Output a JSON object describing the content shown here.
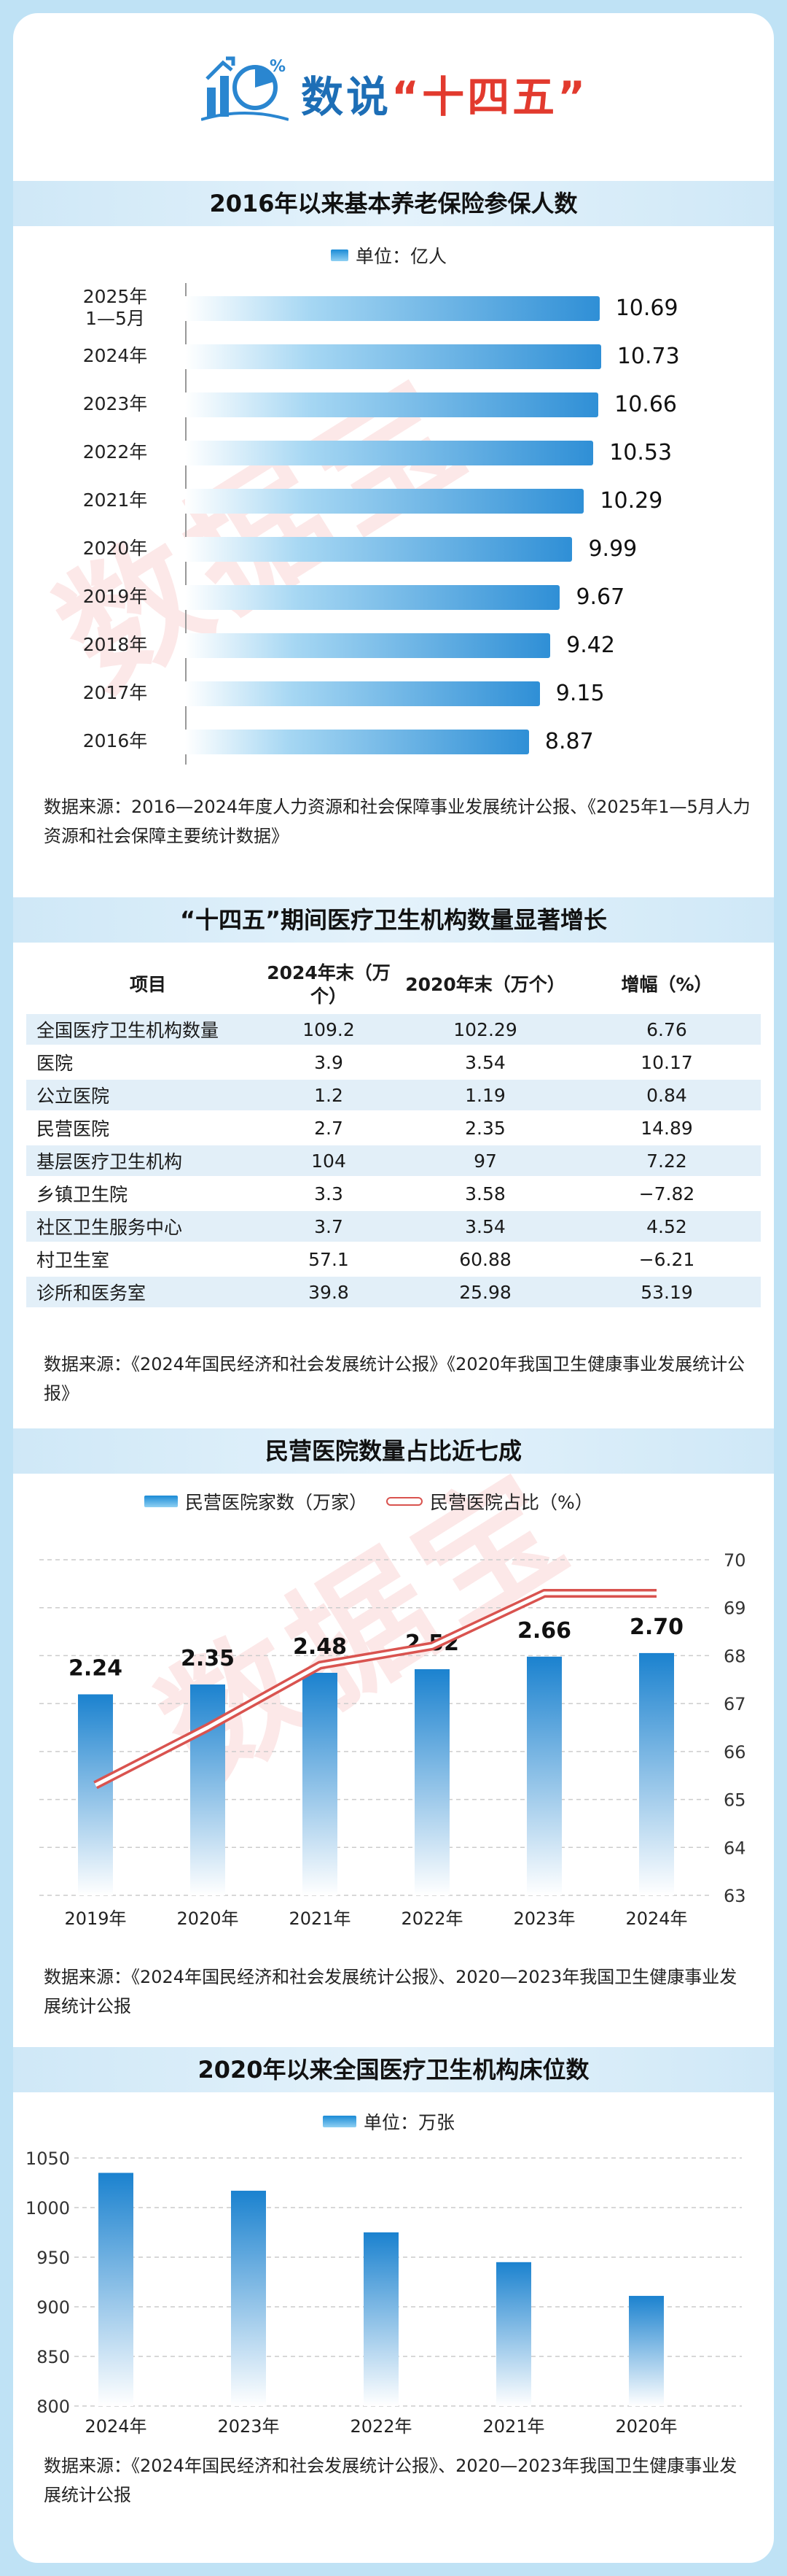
{
  "header": {
    "title_prefix": "数说",
    "title_main": "“十四五”"
  },
  "pension": {
    "title": "2016年以来基本养老保险参保人数",
    "unit": "单位：亿人",
    "source": "数据来源：2016—2024年度人力资源和社会保障事业发展统计公报、《2025年1—5月人力资源和社会保障主要统计数据》"
  },
  "institutions": {
    "title": "“十四五”期间医疗卫生机构数量显著增长",
    "headers": [
      "项目",
      "2024年末（万个）",
      "2020年末（万个）",
      "增幅（%）"
    ],
    "rows": [
      [
        "全国医疗卫生机构数量",
        "109.2",
        "102.29",
        "6.76"
      ],
      [
        "医院",
        "3.9",
        "3.54",
        "10.17"
      ],
      [
        "公立医院",
        "1.2",
        "1.19",
        "0.84"
      ],
      [
        "民营医院",
        "2.7",
        "2.35",
        "14.89"
      ],
      [
        "基层医疗卫生机构",
        "104",
        "97",
        "7.22"
      ],
      [
        "乡镇卫生院",
        "3.3",
        "3.58",
        "−7.82"
      ],
      [
        "社区卫生服务中心",
        "3.7",
        "3.54",
        "4.52"
      ],
      [
        "村卫生室",
        "57.1",
        "60.88",
        "−6.21"
      ],
      [
        "诊所和医务室",
        "39.8",
        "25.98",
        "53.19"
      ]
    ],
    "source": "数据来源：《2024年国民经济和社会发展统计公报》《2020年我国卫生健康事业发展统计公报》"
  },
  "private_hospitals": {
    "title": "民营医院数量占比近七成",
    "source": "数据来源：《2024年国民经济和社会发展统计公报》、2020—2023年我国卫生健康事业发展统计公报"
  },
  "beds": {
    "title": "2020年以来全国医疗卫生机构床位数",
    "unit": "单位：万张",
    "source": "数据来源：《2024年国民经济和社会发展统计公报》、2020—2023年我国卫生健康事业发展统计公报"
  },
  "watermark": "数据宝",
  "colors": {
    "accent": "#1d6eb6",
    "red": "#e23a2e",
    "bar": "#2f8fd6",
    "line": "#d9534f"
  },
  "chart_data": [
    {
      "type": "bar",
      "title": "2016年以来基本养老保险参保人数",
      "categories": [
        "2025年 1—5月",
        "2024年",
        "2023年",
        "2022年",
        "2021年",
        "2020年",
        "2019年",
        "2018年",
        "2017年",
        "2016年"
      ],
      "values": [
        10.69,
        10.73,
        10.66,
        10.53,
        10.29,
        9.99,
        9.67,
        9.42,
        9.15,
        8.87
      ],
      "orientation": "horizontal",
      "legend": "top-center"
    },
    {
      "type": "bar",
      "title": "民营医院数量占比近七成",
      "categories": [
        "2019年",
        "2020年",
        "2021年",
        "2022年",
        "2023年",
        "2024年"
      ],
      "series": [
        {
          "name": "民营医院家数（万家）",
          "type": "bar",
          "axis": "left",
          "values": [
            2.24,
            2.35,
            2.48,
            2.52,
            2.66,
            2.7
          ]
        },
        {
          "name": "民营医院占比（%）",
          "type": "line",
          "axis": "right",
          "values": [
            65.3,
            66.5,
            67.8,
            68.2,
            69.3,
            69.3
          ]
        }
      ],
      "ylim_right": [
        63,
        70
      ],
      "yticks_right": [
        "63",
        "64",
        "65",
        "66",
        "67",
        "68",
        "69",
        "70"
      ],
      "grid": true,
      "legend": "top-center"
    },
    {
      "type": "bar",
      "title": "2020年以来全国医疗卫生机构床位数",
      "categories": [
        "2024年",
        "2023年",
        "2022年",
        "2021年",
        "2020年"
      ],
      "values": [
        1035,
        1017,
        975,
        945,
        911
      ],
      "ylim": [
        800,
        1050
      ],
      "yticks": [
        "800",
        "850",
        "900",
        "950",
        "1000",
        "1050"
      ],
      "grid": true,
      "legend": "top-center"
    }
  ]
}
